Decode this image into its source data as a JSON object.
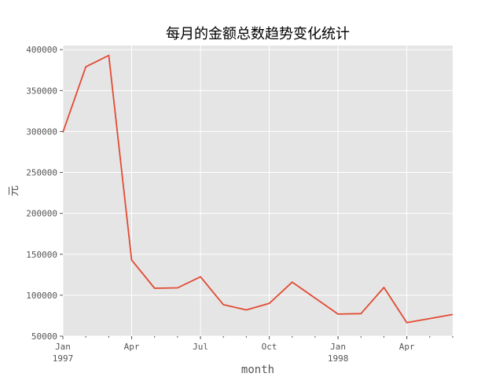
{
  "chart_data": {
    "type": "line",
    "title": "每月的金额总数趋势变化统计",
    "xlabel": "month",
    "ylabel": "元",
    "x": [
      "1997-01",
      "1997-02",
      "1997-03",
      "1997-04",
      "1997-05",
      "1997-06",
      "1997-07",
      "1997-08",
      "1997-09",
      "1997-10",
      "1997-11",
      "1997-12",
      "1998-01",
      "1998-02",
      "1998-03",
      "1998-04",
      "1998-05",
      "1998-06"
    ],
    "series": [
      {
        "values": [
          299000,
          379000,
          393000,
          143000,
          108500,
          109000,
          122500,
          88500,
          82000,
          90000,
          116000,
          96500,
          77000,
          77500,
          109500,
          66500,
          71500,
          76500
        ]
      }
    ],
    "ylim": [
      50000,
      405000
    ],
    "y_ticks": [
      "50000",
      "100000",
      "150000",
      "200000",
      "250000",
      "300000",
      "350000",
      "400000"
    ],
    "x_ticks": [
      {
        "month": "1997-01",
        "label": "Jan",
        "sublabel": "1997"
      },
      {
        "month": "1997-04",
        "label": "Apr",
        "sublabel": ""
      },
      {
        "month": "1997-07",
        "label": "Jul",
        "sublabel": ""
      },
      {
        "month": "1997-10",
        "label": "Oct",
        "sublabel": ""
      },
      {
        "month": "1998-01",
        "label": "Jan",
        "sublabel": "1998"
      },
      {
        "month": "1998-04",
        "label": "Apr",
        "sublabel": ""
      }
    ],
    "grid": true,
    "colors": {
      "background": "#e5e5e5",
      "grid": "#ffffff",
      "line": "#e24a33"
    }
  }
}
